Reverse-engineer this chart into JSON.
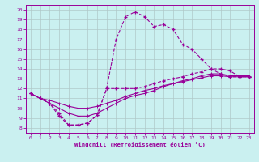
{
  "xlabel": "Windchill (Refroidissement éolien,°C)",
  "bg_color": "#caf0f0",
  "line_color": "#990099",
  "grid_color": "#b0c8c8",
  "xlim": [
    -0.5,
    23.5
  ],
  "ylim": [
    7.5,
    20.5
  ],
  "xticks": [
    0,
    1,
    2,
    3,
    4,
    5,
    6,
    7,
    8,
    9,
    10,
    11,
    12,
    13,
    14,
    15,
    16,
    17,
    18,
    19,
    20,
    21,
    22,
    23
  ],
  "yticks": [
    8,
    9,
    10,
    11,
    12,
    13,
    14,
    15,
    16,
    17,
    18,
    19,
    20
  ],
  "line1_x": [
    0,
    1,
    2,
    3,
    4,
    5,
    6,
    7,
    8,
    9,
    10,
    11,
    12,
    13,
    14,
    15,
    16,
    17,
    18,
    19,
    20,
    21,
    22,
    23
  ],
  "line1_y": [
    11.5,
    11.0,
    10.5,
    9.2,
    8.3,
    8.3,
    8.5,
    9.3,
    12.0,
    17.0,
    19.3,
    19.8,
    19.3,
    18.3,
    18.5,
    18.0,
    16.5,
    16.0,
    15.0,
    14.0,
    13.5,
    13.2,
    13.2,
    13.2
  ],
  "line2_x": [
    0,
    2,
    3,
    4,
    5,
    6,
    7,
    8,
    9,
    10,
    11,
    12,
    13,
    14,
    15,
    16,
    17,
    18,
    19,
    20,
    21,
    22,
    23
  ],
  "line2_y": [
    11.5,
    10.5,
    9.5,
    8.3,
    8.3,
    8.5,
    9.3,
    12.0,
    12.0,
    12.0,
    12.0,
    12.2,
    12.5,
    12.8,
    13.0,
    13.2,
    13.5,
    13.7,
    14.0,
    14.0,
    13.8,
    13.2,
    13.2
  ],
  "line3_x": [
    0,
    1,
    2,
    3,
    4,
    5,
    6,
    7,
    8,
    9,
    10,
    11,
    12,
    13,
    14,
    15,
    16,
    17,
    18,
    19,
    20,
    21,
    22,
    23
  ],
  "line3_y": [
    11.5,
    11.0,
    10.8,
    10.5,
    10.2,
    10.0,
    10.0,
    10.2,
    10.5,
    10.8,
    11.2,
    11.5,
    11.8,
    12.0,
    12.3,
    12.5,
    12.7,
    12.9,
    13.1,
    13.3,
    13.3,
    13.2,
    13.2,
    13.2
  ],
  "line4_x": [
    0,
    1,
    2,
    3,
    4,
    5,
    6,
    7,
    8,
    9,
    10,
    11,
    12,
    13,
    14,
    15,
    16,
    17,
    18,
    19,
    20,
    21,
    22,
    23
  ],
  "line4_y": [
    11.5,
    11.0,
    10.5,
    10.0,
    9.5,
    9.2,
    9.2,
    9.5,
    10.0,
    10.5,
    11.0,
    11.3,
    11.5,
    11.8,
    12.2,
    12.5,
    12.8,
    13.0,
    13.3,
    13.5,
    13.5,
    13.3,
    13.3,
    13.3
  ]
}
